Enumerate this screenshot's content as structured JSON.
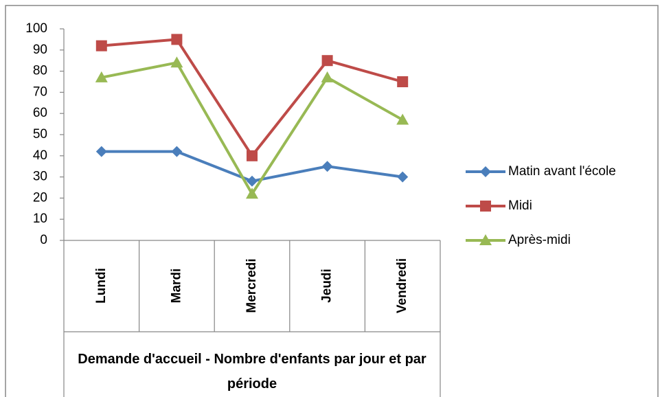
{
  "chart_data": {
    "type": "line",
    "xlabel": "Demande d'accueil - Nombre d'enfants par jour et par période",
    "categories": [
      "Lundi",
      "Mardi",
      "Mercredi",
      "Jeudi",
      "Vendredi"
    ],
    "series": [
      {
        "name": "Matin avant l'école",
        "color": "#4a7ebb",
        "marker": "diamond",
        "values": [
          42,
          42,
          28,
          35,
          30
        ]
      },
      {
        "name": "Midi",
        "color": "#be4b48",
        "marker": "square",
        "values": [
          92,
          95,
          40,
          85,
          75
        ]
      },
      {
        "name": "Après-midi",
        "color": "#98b954",
        "marker": "triangle",
        "values": [
          77,
          84,
          22,
          77,
          57
        ]
      }
    ],
    "ylim": [
      0,
      100
    ],
    "yticks": [
      0,
      10,
      20,
      30,
      40,
      50,
      60,
      70,
      80,
      90,
      100
    ],
    "grid": false,
    "legend": "right"
  }
}
